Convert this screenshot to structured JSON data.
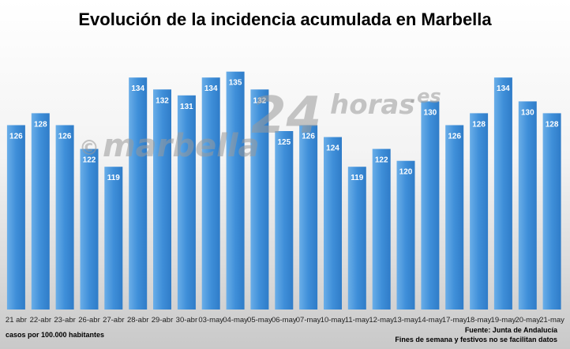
{
  "chart_data": {
    "type": "bar",
    "title": "Evolución de la incidencia acumulada en Marbella",
    "ylabel": "casos por 100.000 habitantes",
    "ylim": [
      95,
      140
    ],
    "categories": [
      "21 abr",
      "22-abr",
      "23-abr",
      "26-abr",
      "27-abr",
      "28-abr",
      "29-abr",
      "30-abr",
      "03-may",
      "04-may",
      "05-may",
      "06-may",
      "07-may",
      "10-may",
      "11-may",
      "12-may",
      "13-may",
      "14-may",
      "17-may",
      "18-may",
      "19-may",
      "20-may",
      "21-may"
    ],
    "values": [
      126,
      128,
      126,
      122,
      119,
      134,
      132,
      131,
      134,
      135,
      132,
      125,
      126,
      124,
      119,
      122,
      120,
      130,
      126,
      128,
      134,
      130,
      128
    ],
    "bar_color": "#3f8fd9",
    "bar_color_light": "#6aaee8",
    "legend": "none"
  },
  "footer": {
    "units_note": "casos por 100.000 habitantes",
    "source": "Fuente: Junta de Andalucía",
    "disclaimer": "Fines de semana y festivos no se facilitan datos"
  },
  "watermark": {
    "copyright": "©",
    "brand_a": "marbella",
    "brand_b": "24",
    "brand_c": "horas",
    "brand_d": ".es"
  }
}
